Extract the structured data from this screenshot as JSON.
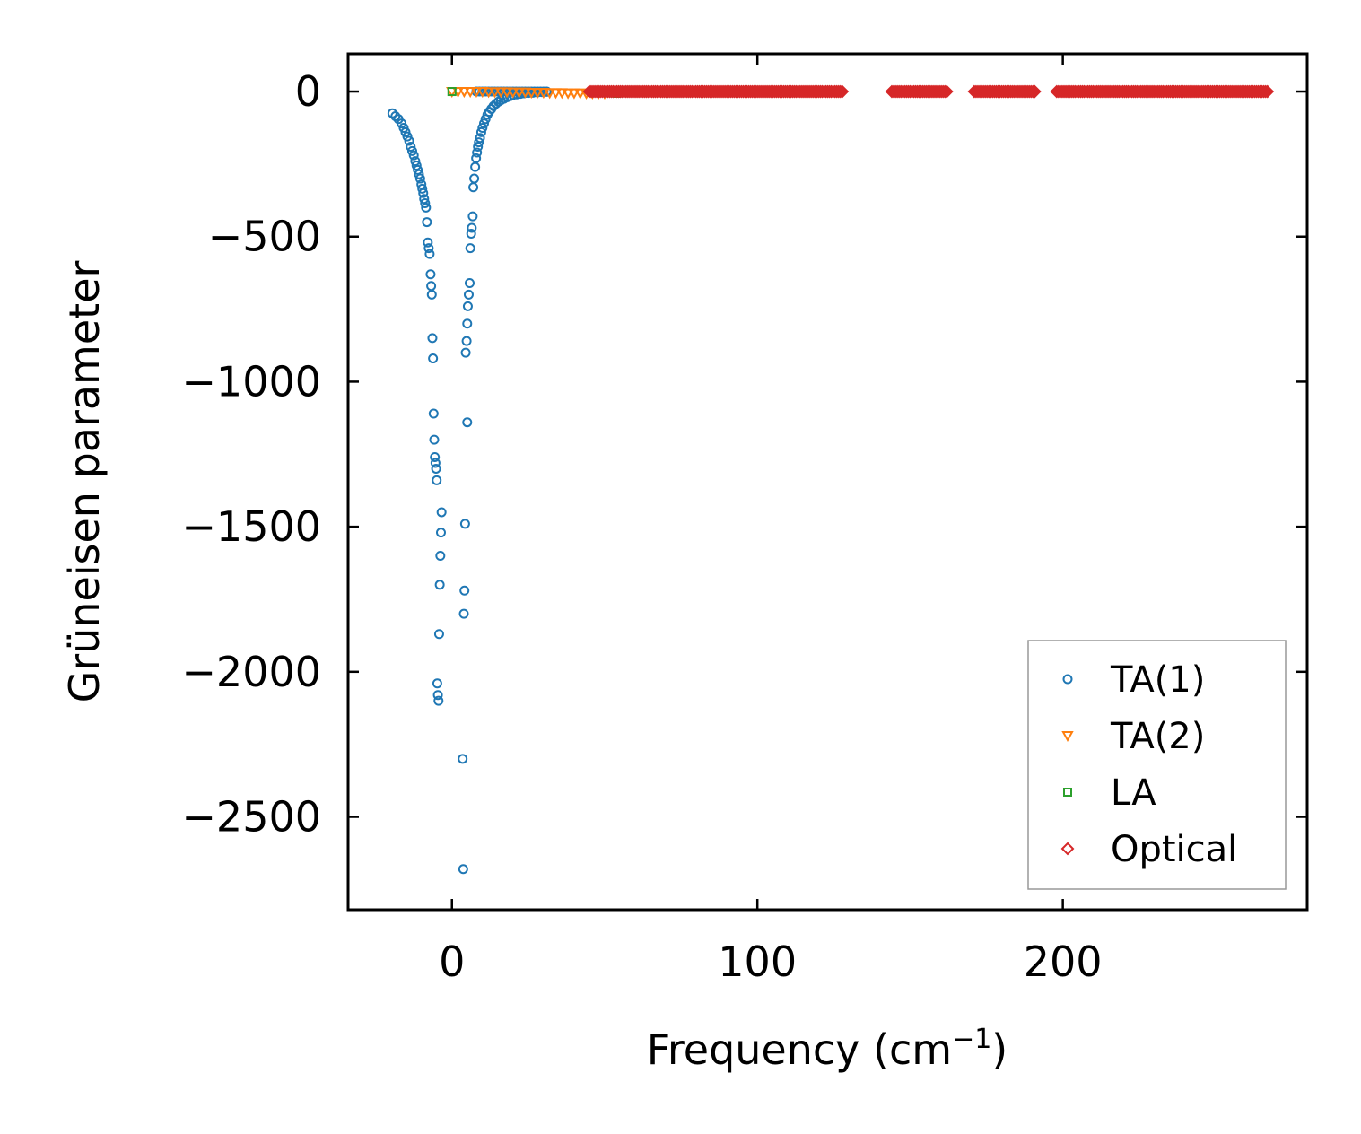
{
  "chart_data": {
    "type": "scatter",
    "title": "",
    "xlabel": "Frequency (cm",
    "xlabel_sup": "−1",
    "xlabel_tail": ")",
    "ylabel": "Grüneisen parameter",
    "xlim": [
      -34,
      280
    ],
    "ylim": [
      -2820,
      130
    ],
    "xticks": [
      0,
      100,
      200
    ],
    "xtick_labels": [
      "0",
      "100",
      "200"
    ],
    "yticks": [
      0,
      -500,
      -1000,
      -1500,
      -2000,
      -2500
    ],
    "ytick_labels": [
      "0",
      "−500",
      "−1000",
      "−1500",
      "−2000",
      "−2500"
    ],
    "grid": false,
    "legend_position": "lower-right",
    "series": [
      {
        "name": "TA(1)",
        "marker": "circle",
        "color": "#1f77b4",
        "x": [
          -19.5,
          -18.5,
          -17.5,
          -16.5,
          -15.8,
          -15.2,
          -14.6,
          -14.0,
          -13.5,
          -13.0,
          -12.5,
          -12.0,
          -11.6,
          -11.2,
          -10.8,
          -10.4,
          -10.0,
          -9.7,
          -9.4,
          -9.1,
          -8.8,
          -8.5,
          -8.2,
          -7.9,
          -7.6,
          -7.3,
          -7.0,
          -6.8,
          -6.6,
          -6.4,
          -6.2,
          -6.0,
          -5.8,
          -5.6,
          -5.4,
          -5.2,
          -5.0,
          -4.8,
          -4.6,
          -4.4,
          -4.2,
          -4.0,
          -3.8,
          -3.6,
          -3.4,
          3.5,
          3.7,
          3.9,
          4.1,
          4.3,
          4.5,
          4.8,
          5.0,
          5.2,
          5.5,
          5.8,
          6.0,
          6.3,
          6.5,
          6.8,
          7.0,
          7.3,
          7.6,
          7.9,
          8.2,
          8.5,
          8.8,
          9.2,
          9.6,
          10.0,
          10.5,
          11.0,
          11.6,
          12.2,
          12.9,
          13.6,
          14.4,
          15.2,
          16.0,
          17.0,
          18.0,
          19.0,
          20.0,
          21.2,
          22.4,
          23.6,
          25.0,
          26.5,
          28.0,
          29.5,
          31.0,
          8.0,
          9.0,
          10.0,
          11.0,
          12.0,
          13.0,
          14.0,
          15.0,
          16.0,
          17.0,
          18.0,
          19.0,
          20.0,
          21.0,
          22.0,
          23.0,
          24.0,
          25.0,
          26.0,
          27.0,
          28.0,
          29.0,
          30.0,
          31.0,
          5.0
        ],
        "y": [
          -75,
          -85,
          -95,
          -110,
          -125,
          -140,
          -155,
          -170,
          -190,
          -205,
          -220,
          -240,
          -255,
          -270,
          -285,
          -300,
          -320,
          -335,
          -350,
          -370,
          -385,
          -400,
          -450,
          -520,
          -540,
          -560,
          -630,
          -670,
          -700,
          -850,
          -920,
          -1110,
          -1200,
          -1260,
          -1280,
          -1300,
          -1340,
          -2040,
          -2080,
          -2100,
          -1870,
          -1700,
          -1600,
          -1520,
          -1450,
          -2300,
          -2680,
          -1800,
          -1720,
          -1490,
          -900,
          -860,
          -800,
          -740,
          -700,
          -660,
          -540,
          -490,
          -470,
          -430,
          -330,
          -300,
          -260,
          -230,
          -210,
          -190,
          -175,
          -160,
          -140,
          -125,
          -110,
          -95,
          -80,
          -70,
          -60,
          -50,
          -42,
          -35,
          -30,
          -25,
          -20,
          -16,
          -12,
          -10,
          -8,
          -6,
          -5,
          -4,
          -3,
          -2,
          -1,
          0,
          0,
          0,
          0,
          0,
          0,
          0,
          0,
          0,
          0,
          0,
          0,
          0,
          0,
          0,
          0,
          0,
          0,
          0,
          0,
          0,
          0,
          0,
          0,
          -1140
        ]
      },
      {
        "name": "TA(2)",
        "marker": "triangle-down",
        "color": "#ff7f0e",
        "x": [
          0,
          2,
          4,
          6,
          8,
          10,
          12,
          14,
          16,
          18,
          20,
          22,
          24,
          26,
          28,
          30,
          32,
          34,
          36,
          38,
          40,
          42,
          44,
          46,
          48,
          50
        ],
        "y": [
          0,
          0,
          0,
          0,
          0,
          0,
          -1,
          -1,
          -1,
          -1,
          -2,
          -2,
          -2,
          -3,
          -3,
          -3,
          -4,
          -4,
          -4,
          -5,
          -5,
          -5,
          -6,
          -6,
          -6,
          -6
        ]
      },
      {
        "name": "LA",
        "marker": "square",
        "color": "#2ca02c",
        "x": [
          0,
          50,
          51,
          52,
          53,
          54
        ],
        "y": [
          0,
          -2,
          -3,
          -4,
          -5,
          -6
        ]
      },
      {
        "name": "Optical",
        "marker": "diamond",
        "color": "#d62728",
        "segments": [
          {
            "x_start": 45,
            "x_end": 128,
            "y": 0
          },
          {
            "x_start": 144,
            "x_end": 162,
            "y": 0
          },
          {
            "x_start": 171,
            "x_end": 191,
            "y": 0
          },
          {
            "x_start": 198,
            "x_end": 267,
            "y": 0
          }
        ]
      }
    ]
  }
}
